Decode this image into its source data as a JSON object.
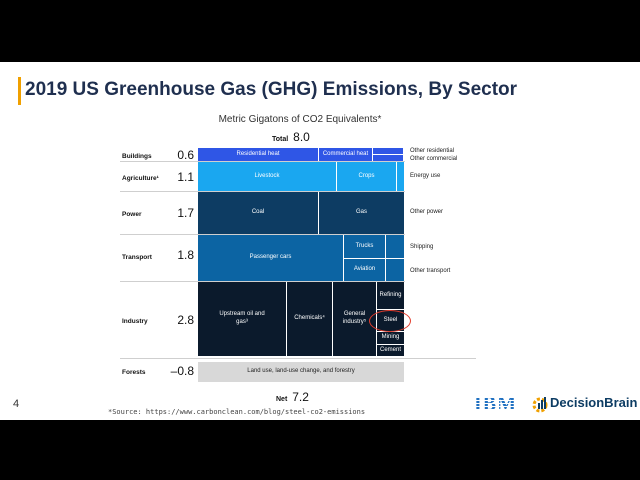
{
  "slide": {
    "title": "2019 US Greenhouse Gas (GHG) Emissions, By Sector",
    "accent_color": "#f0a000",
    "page_number": "4",
    "source": "*Source: https://www.carbonclean.com/blog/steel-co2-emissions"
  },
  "chart": {
    "subtitle": "Metric Gigatons of CO2 Equivalents*",
    "total_label": "Total",
    "total_value": "8.0",
    "net_label": "Net",
    "net_value": "7.2",
    "sectors": [
      {
        "label": "Buildings",
        "value": "0.6"
      },
      {
        "label": "Agriculture¹",
        "value": "1.1"
      },
      {
        "label": "Power",
        "value": "1.7"
      },
      {
        "label": "Transport",
        "value": "1.8"
      },
      {
        "label": "Industry",
        "value": "2.8"
      },
      {
        "label": "Forests",
        "value": "–0.8"
      }
    ],
    "blocks": {
      "residential_heat": "Residential heat",
      "commercial_heat": "Commercial heat",
      "livestock": "Livestock",
      "crops": "Crops",
      "coal": "Coal",
      "gas": "Gas",
      "passenger_cars": "Passenger cars",
      "trucks": "Trucks",
      "aviation": "Aviation",
      "upstream_oil_gas": "Upstream oil and gas³",
      "chemicals": "Chemicals⁴",
      "general_industry": "General industry⁵",
      "refining": "Refining",
      "steel": "Steel",
      "mining": "Mining",
      "cement": "Cement",
      "land_use": "Land use, land-use change, and forestry"
    },
    "right_labels": {
      "other_residential": "Other residential",
      "other_commercial": "Other commercial",
      "energy_use": "Energy use",
      "other_power": "Other power",
      "shipping": "Shipping",
      "other_transport": "Other transport"
    }
  },
  "logos": {
    "ibm": "IBM",
    "decisionbrain": "DecisionBrain"
  },
  "colors": {
    "buildings": "#2f56e6",
    "agriculture": "#1aa7f0",
    "power": "#0d3c63",
    "transport": "#0c64a3",
    "industry": "#0b1a2c",
    "forests": "#d8d8d8",
    "highlight": "#e23b2b"
  }
}
